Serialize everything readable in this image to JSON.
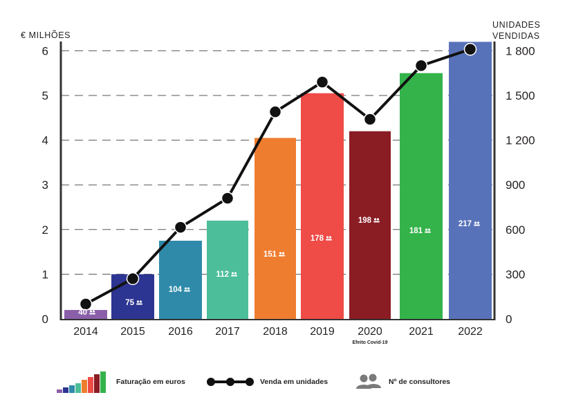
{
  "chart_data": {
    "type": "bar",
    "categories": [
      "2014",
      "2015",
      "2016",
      "2017",
      "2018",
      "2019",
      "2020",
      "2021",
      "2022"
    ],
    "category_notes": [
      "",
      "",
      "",
      "",
      "",
      "",
      "Efeito Covid-19",
      "",
      ""
    ],
    "left_axis": {
      "title": "€ MILHÕES",
      "ticks": [
        "0",
        "1",
        "2",
        "3",
        "4",
        "5",
        "6"
      ],
      "range": [
        0,
        6.2
      ]
    },
    "right_axis": {
      "title_lines": [
        "UNIDADES",
        "VENDIDAS"
      ],
      "ticks": [
        "0",
        "300",
        "600",
        "900",
        "1 200",
        "1 500",
        "1 800"
      ],
      "range": [
        0,
        1860
      ]
    },
    "grid": "dashed horizontal",
    "series": [
      {
        "name": "Faturação em euros",
        "kind": "bar",
        "axis": "left",
        "values": [
          0.2,
          1.0,
          1.75,
          2.2,
          4.05,
          5.05,
          4.2,
          5.5,
          6.2
        ],
        "colors": [
          "#8a5ea8",
          "#2c3591",
          "#2f8aaa",
          "#4dbe9a",
          "#ef7d30",
          "#ef4b47",
          "#8a1c24",
          "#34b34a",
          "#5872ba"
        ]
      },
      {
        "name": "Venda em unidades",
        "kind": "line",
        "axis": "right",
        "values": [
          100,
          270,
          615,
          810,
          1390,
          1590,
          1340,
          1700,
          1810
        ],
        "color": "#111111"
      },
      {
        "name": "Nº de consultores",
        "kind": "label",
        "values": [
          40,
          75,
          104,
          112,
          151,
          178,
          198,
          181,
          217
        ]
      }
    ],
    "legend_position": "bottom"
  }
}
